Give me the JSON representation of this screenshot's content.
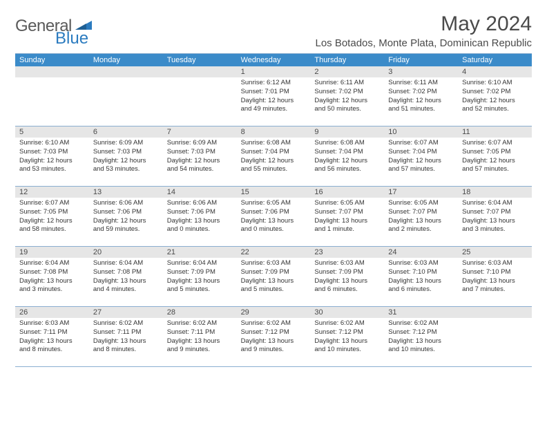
{
  "logo": {
    "part1": "General",
    "part2": "Blue"
  },
  "title": "May 2024",
  "location": "Los Botados, Monte Plata, Dominican Republic",
  "colors": {
    "header_bg": "#3b8bc9",
    "header_text": "#ffffff",
    "daynum_bg": "#e6e6e6",
    "border": "#8aaed0",
    "text": "#333333",
    "title_text": "#4a4a4a",
    "logo_gray": "#5a5a5a",
    "logo_blue": "#2b7bbf"
  },
  "weekdays": [
    "Sunday",
    "Monday",
    "Tuesday",
    "Wednesday",
    "Thursday",
    "Friday",
    "Saturday"
  ],
  "weeks": [
    [
      null,
      null,
      null,
      {
        "n": "1",
        "sr": "Sunrise: 6:12 AM",
        "ss": "Sunset: 7:01 PM",
        "dl": "Daylight: 12 hours and 49 minutes."
      },
      {
        "n": "2",
        "sr": "Sunrise: 6:11 AM",
        "ss": "Sunset: 7:02 PM",
        "dl": "Daylight: 12 hours and 50 minutes."
      },
      {
        "n": "3",
        "sr": "Sunrise: 6:11 AM",
        "ss": "Sunset: 7:02 PM",
        "dl": "Daylight: 12 hours and 51 minutes."
      },
      {
        "n": "4",
        "sr": "Sunrise: 6:10 AM",
        "ss": "Sunset: 7:02 PM",
        "dl": "Daylight: 12 hours and 52 minutes."
      }
    ],
    [
      {
        "n": "5",
        "sr": "Sunrise: 6:10 AM",
        "ss": "Sunset: 7:03 PM",
        "dl": "Daylight: 12 hours and 53 minutes."
      },
      {
        "n": "6",
        "sr": "Sunrise: 6:09 AM",
        "ss": "Sunset: 7:03 PM",
        "dl": "Daylight: 12 hours and 53 minutes."
      },
      {
        "n": "7",
        "sr": "Sunrise: 6:09 AM",
        "ss": "Sunset: 7:03 PM",
        "dl": "Daylight: 12 hours and 54 minutes."
      },
      {
        "n": "8",
        "sr": "Sunrise: 6:08 AM",
        "ss": "Sunset: 7:04 PM",
        "dl": "Daylight: 12 hours and 55 minutes."
      },
      {
        "n": "9",
        "sr": "Sunrise: 6:08 AM",
        "ss": "Sunset: 7:04 PM",
        "dl": "Daylight: 12 hours and 56 minutes."
      },
      {
        "n": "10",
        "sr": "Sunrise: 6:07 AM",
        "ss": "Sunset: 7:04 PM",
        "dl": "Daylight: 12 hours and 57 minutes."
      },
      {
        "n": "11",
        "sr": "Sunrise: 6:07 AM",
        "ss": "Sunset: 7:05 PM",
        "dl": "Daylight: 12 hours and 57 minutes."
      }
    ],
    [
      {
        "n": "12",
        "sr": "Sunrise: 6:07 AM",
        "ss": "Sunset: 7:05 PM",
        "dl": "Daylight: 12 hours and 58 minutes."
      },
      {
        "n": "13",
        "sr": "Sunrise: 6:06 AM",
        "ss": "Sunset: 7:06 PM",
        "dl": "Daylight: 12 hours and 59 minutes."
      },
      {
        "n": "14",
        "sr": "Sunrise: 6:06 AM",
        "ss": "Sunset: 7:06 PM",
        "dl": "Daylight: 13 hours and 0 minutes."
      },
      {
        "n": "15",
        "sr": "Sunrise: 6:05 AM",
        "ss": "Sunset: 7:06 PM",
        "dl": "Daylight: 13 hours and 0 minutes."
      },
      {
        "n": "16",
        "sr": "Sunrise: 6:05 AM",
        "ss": "Sunset: 7:07 PM",
        "dl": "Daylight: 13 hours and 1 minute."
      },
      {
        "n": "17",
        "sr": "Sunrise: 6:05 AM",
        "ss": "Sunset: 7:07 PM",
        "dl": "Daylight: 13 hours and 2 minutes."
      },
      {
        "n": "18",
        "sr": "Sunrise: 6:04 AM",
        "ss": "Sunset: 7:07 PM",
        "dl": "Daylight: 13 hours and 3 minutes."
      }
    ],
    [
      {
        "n": "19",
        "sr": "Sunrise: 6:04 AM",
        "ss": "Sunset: 7:08 PM",
        "dl": "Daylight: 13 hours and 3 minutes."
      },
      {
        "n": "20",
        "sr": "Sunrise: 6:04 AM",
        "ss": "Sunset: 7:08 PM",
        "dl": "Daylight: 13 hours and 4 minutes."
      },
      {
        "n": "21",
        "sr": "Sunrise: 6:04 AM",
        "ss": "Sunset: 7:09 PM",
        "dl": "Daylight: 13 hours and 5 minutes."
      },
      {
        "n": "22",
        "sr": "Sunrise: 6:03 AM",
        "ss": "Sunset: 7:09 PM",
        "dl": "Daylight: 13 hours and 5 minutes."
      },
      {
        "n": "23",
        "sr": "Sunrise: 6:03 AM",
        "ss": "Sunset: 7:09 PM",
        "dl": "Daylight: 13 hours and 6 minutes."
      },
      {
        "n": "24",
        "sr": "Sunrise: 6:03 AM",
        "ss": "Sunset: 7:10 PM",
        "dl": "Daylight: 13 hours and 6 minutes."
      },
      {
        "n": "25",
        "sr": "Sunrise: 6:03 AM",
        "ss": "Sunset: 7:10 PM",
        "dl": "Daylight: 13 hours and 7 minutes."
      }
    ],
    [
      {
        "n": "26",
        "sr": "Sunrise: 6:03 AM",
        "ss": "Sunset: 7:11 PM",
        "dl": "Daylight: 13 hours and 8 minutes."
      },
      {
        "n": "27",
        "sr": "Sunrise: 6:02 AM",
        "ss": "Sunset: 7:11 PM",
        "dl": "Daylight: 13 hours and 8 minutes."
      },
      {
        "n": "28",
        "sr": "Sunrise: 6:02 AM",
        "ss": "Sunset: 7:11 PM",
        "dl": "Daylight: 13 hours and 9 minutes."
      },
      {
        "n": "29",
        "sr": "Sunrise: 6:02 AM",
        "ss": "Sunset: 7:12 PM",
        "dl": "Daylight: 13 hours and 9 minutes."
      },
      {
        "n": "30",
        "sr": "Sunrise: 6:02 AM",
        "ss": "Sunset: 7:12 PM",
        "dl": "Daylight: 13 hours and 10 minutes."
      },
      {
        "n": "31",
        "sr": "Sunrise: 6:02 AM",
        "ss": "Sunset: 7:12 PM",
        "dl": "Daylight: 13 hours and 10 minutes."
      },
      null
    ]
  ]
}
